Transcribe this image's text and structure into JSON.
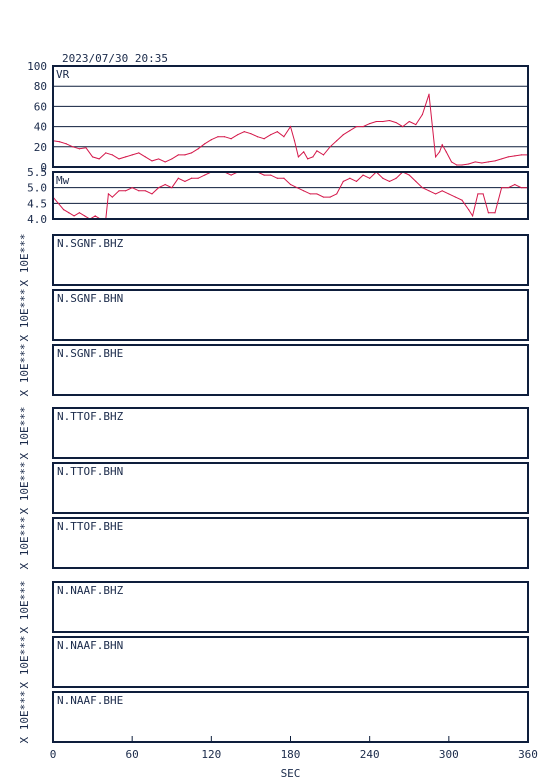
{
  "header": {
    "datetime": "2023/07/30 20:35"
  },
  "chart_data": [
    {
      "type": "line",
      "panel_label": "VR",
      "ylim": [
        0,
        100
      ],
      "yticks": [
        "0",
        "20",
        "40",
        "60",
        "80",
        "100"
      ],
      "grid": true,
      "x": [
        0,
        5,
        10,
        15,
        20,
        25,
        30,
        35,
        40,
        45,
        50,
        55,
        60,
        65,
        70,
        75,
        80,
        85,
        90,
        95,
        100,
        105,
        110,
        115,
        120,
        125,
        130,
        135,
        140,
        145,
        150,
        155,
        160,
        165,
        170,
        175,
        180,
        183,
        186,
        190,
        193,
        197,
        200,
        205,
        210,
        215,
        220,
        225,
        230,
        235,
        240,
        245,
        250,
        255,
        260,
        265,
        270,
        275,
        280,
        285,
        290,
        293,
        295,
        298,
        302,
        306,
        310,
        315,
        320,
        325,
        330,
        335,
        340,
        345,
        350,
        355,
        360
      ],
      "values": [
        26,
        25,
        23,
        20,
        18,
        19,
        10,
        8,
        14,
        12,
        8,
        10,
        12,
        14,
        10,
        6,
        8,
        5,
        8,
        12,
        12,
        14,
        18,
        23,
        27,
        30,
        30,
        28,
        32,
        35,
        33,
        30,
        28,
        32,
        35,
        30,
        40,
        26,
        10,
        15,
        8,
        10,
        16,
        12,
        20,
        26,
        32,
        36,
        40,
        40,
        43,
        45,
        45,
        46,
        44,
        40,
        45,
        42,
        52,
        72,
        10,
        15,
        22,
        15,
        5,
        2,
        2,
        3,
        5,
        4,
        5,
        6,
        8,
        10,
        11,
        12,
        12
      ]
    },
    {
      "type": "line",
      "panel_label": "Mw",
      "ylim": [
        4.0,
        5.5
      ],
      "yticks": [
        "4.0",
        "4.5",
        "5.0",
        "5.5"
      ],
      "grid": true,
      "x": [
        0,
        4,
        8,
        12,
        16,
        20,
        24,
        28,
        32,
        36,
        40,
        42,
        45,
        50,
        55,
        60,
        65,
        70,
        75,
        80,
        85,
        90,
        95,
        100,
        105,
        110,
        115,
        120,
        125,
        130,
        135,
        140,
        145,
        150,
        155,
        160,
        165,
        170,
        175,
        180,
        185,
        190,
        195,
        200,
        205,
        210,
        215,
        220,
        225,
        230,
        235,
        240,
        245,
        250,
        255,
        260,
        265,
        270,
        275,
        280,
        285,
        290,
        295,
        300,
        305,
        310,
        315,
        318,
        322,
        326,
        330,
        335,
        340,
        345,
        350,
        355,
        360
      ],
      "values": [
        4.7,
        4.5,
        4.3,
        4.2,
        4.1,
        4.2,
        4.1,
        4.0,
        4.1,
        4.0,
        4.0,
        4.8,
        4.7,
        4.9,
        4.9,
        5.0,
        4.9,
        4.9,
        4.8,
        5.0,
        5.1,
        5.0,
        5.3,
        5.2,
        5.3,
        5.3,
        5.4,
        5.5,
        5.5,
        5.5,
        5.4,
        5.5,
        5.5,
        5.5,
        5.5,
        5.4,
        5.4,
        5.3,
        5.3,
        5.1,
        5.0,
        4.9,
        4.8,
        4.8,
        4.7,
        4.7,
        4.8,
        5.2,
        5.3,
        5.2,
        5.4,
        5.3,
        5.5,
        5.3,
        5.2,
        5.3,
        5.5,
        5.4,
        5.2,
        5.0,
        4.9,
        4.8,
        4.9,
        4.8,
        4.7,
        4.6,
        4.3,
        4.1,
        4.8,
        4.8,
        4.2,
        4.2,
        5.0,
        5.0,
        5.1,
        5.0,
        5.0
      ]
    }
  ],
  "traces": [
    {
      "station": "N.SGNF.BHZ",
      "ylabel": "X 10E***"
    },
    {
      "station": "N.SGNF.BHN",
      "ylabel": "X 10E***"
    },
    {
      "station": "N.SGNF.BHE",
      "ylabel": "X 10E***"
    },
    {
      "station": "N.TTOF.BHZ",
      "ylabel": "X 10E***"
    },
    {
      "station": "N.TTOF.BHN",
      "ylabel": "X 10E***"
    },
    {
      "station": "N.TTOF.BHE",
      "ylabel": "X 10E***"
    },
    {
      "station": "N.NAAF.BHZ",
      "ylabel": "X 10E***"
    },
    {
      "station": "N.NAAF.BHN",
      "ylabel": "X 10E***"
    },
    {
      "station": "N.NAAF.BHE",
      "ylabel": "X 10E***"
    }
  ],
  "xaxis": {
    "label": "SEC",
    "xlim": [
      0,
      360
    ],
    "ticks": [
      "0",
      "60",
      "120",
      "180",
      "240",
      "300",
      "360"
    ]
  }
}
